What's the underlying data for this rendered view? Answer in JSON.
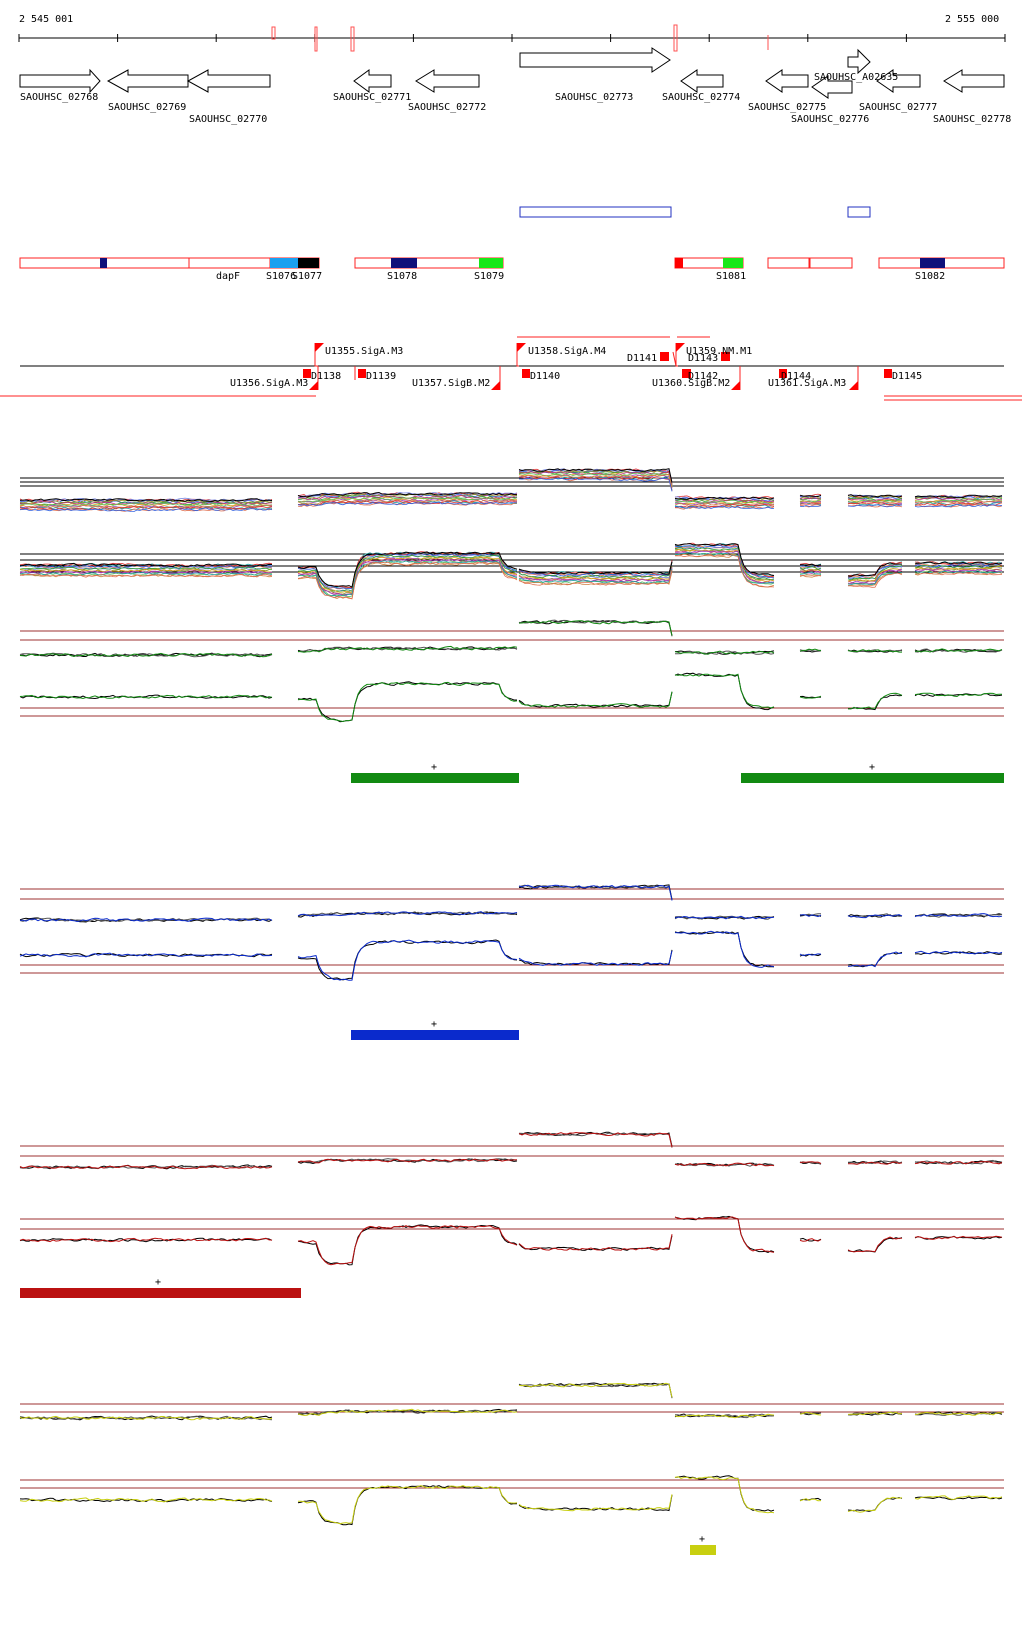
{
  "coords": {
    "start": "2 545 001",
    "end": "2 555 000"
  },
  "genes": [
    {
      "label": "SAOUHSC_02768",
      "dir": "right"
    },
    {
      "label": "SAOUHSC_02769",
      "dir": "left"
    },
    {
      "label": "SAOUHSC_02770",
      "dir": "left"
    },
    {
      "label": "SAOUHSC_02771",
      "dir": "left"
    },
    {
      "label": "SAOUHSC_02772",
      "dir": "left"
    },
    {
      "label": "SAOUHSC_02773",
      "dir": "right"
    },
    {
      "label": "SAOUHSC_02774",
      "dir": "left"
    },
    {
      "label": "SAOUHSC_02775",
      "dir": "left"
    },
    {
      "label": "SAOUHSC_02776",
      "dir": "left"
    },
    {
      "label": "SAOUHSC_A02635",
      "dir": "right"
    },
    {
      "label": "SAOUHSC_02777",
      "dir": "left"
    },
    {
      "label": "SAOUHSC_02778",
      "dir": "left"
    }
  ],
  "segment_labels": {
    "dapF": "dapF",
    "S1076": "S1076",
    "S1077": "S1077",
    "S1078": "S1078",
    "S1079": "S1079",
    "S1081": "S1081",
    "S1082": "S1082"
  },
  "promoters_up": [
    {
      "label": "U1355.SigA.M3"
    },
    {
      "label": "U1358.SigA.M4"
    },
    {
      "label": "U1359.NM.M1"
    }
  ],
  "promoters_down": [
    {
      "label": "U1356.SigA.M3"
    },
    {
      "label": "U1357.SigB.M2"
    },
    {
      "label": "U1360.SigB.M2"
    },
    {
      "label": "U1361.SigA.M3"
    }
  ],
  "terminators": [
    {
      "label": "D1138"
    },
    {
      "label": "D1139"
    },
    {
      "label": "D1140"
    },
    {
      "label": "D1141"
    },
    {
      "label": "D1143"
    },
    {
      "label": "D1142"
    },
    {
      "label": "D1144"
    },
    {
      "label": "D1145"
    }
  ],
  "cluster_marker": "+",
  "colors": {
    "gene_outline": "#000000",
    "segment_outline": "#ff2020",
    "terminator": "#ff0000",
    "blue_outline": "#2030c0",
    "green": "#128a12",
    "blue": "#0a2acc",
    "red": "#bb1111",
    "yellow": "#c8cf10",
    "threshold": "#9c3030"
  }
}
